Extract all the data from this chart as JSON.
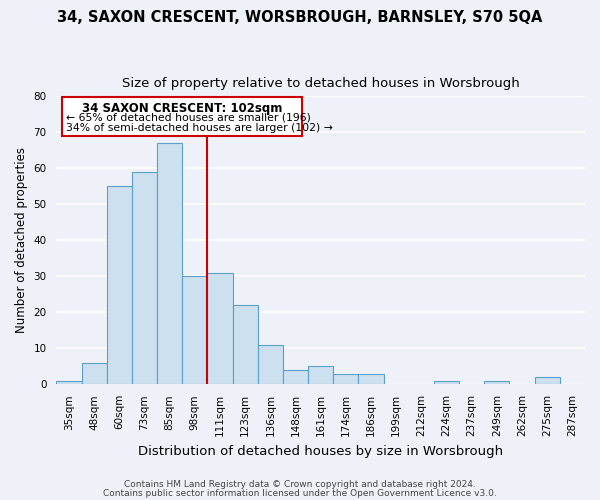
{
  "title": "34, SAXON CRESCENT, WORSBROUGH, BARNSLEY, S70 5QA",
  "subtitle": "Size of property relative to detached houses in Worsbrough",
  "xlabel": "Distribution of detached houses by size in Worsbrough",
  "ylabel": "Number of detached properties",
  "bin_labels": [
    "35sqm",
    "48sqm",
    "60sqm",
    "73sqm",
    "85sqm",
    "98sqm",
    "111sqm",
    "123sqm",
    "136sqm",
    "148sqm",
    "161sqm",
    "174sqm",
    "186sqm",
    "199sqm",
    "212sqm",
    "224sqm",
    "237sqm",
    "249sqm",
    "262sqm",
    "275sqm",
    "287sqm"
  ],
  "bin_values": [
    1,
    6,
    55,
    59,
    67,
    30,
    31,
    22,
    11,
    4,
    5,
    3,
    3,
    0,
    0,
    1,
    0,
    1,
    0,
    2,
    0
  ],
  "bar_color": "#cce0f0",
  "bar_edge_color": "#5a9fc8",
  "vline_x_index": 5.5,
  "vline_color": "#cc0000",
  "annotation_title": "34 SAXON CRESCENT: 102sqm",
  "annotation_line1": "← 65% of detached houses are smaller (196)",
  "annotation_line2": "34% of semi-detached houses are larger (102) →",
  "annotation_box_color": "#cc0000",
  "ylim": [
    0,
    80
  ],
  "yticks": [
    0,
    10,
    20,
    30,
    40,
    50,
    60,
    70,
    80
  ],
  "footer1": "Contains HM Land Registry data © Crown copyright and database right 2024.",
  "footer2": "Contains public sector information licensed under the Open Government Licence v3.0.",
  "background_color": "#eef2f8",
  "grid_color": "#ffffff",
  "title_fontsize": 10.5,
  "subtitle_fontsize": 9.5,
  "xlabel_fontsize": 9.5,
  "ylabel_fontsize": 8.5,
  "tick_fontsize": 7.5,
  "annotation_title_fontsize": 8.5,
  "annotation_text_fontsize": 7.8,
  "footer_fontsize": 6.5
}
